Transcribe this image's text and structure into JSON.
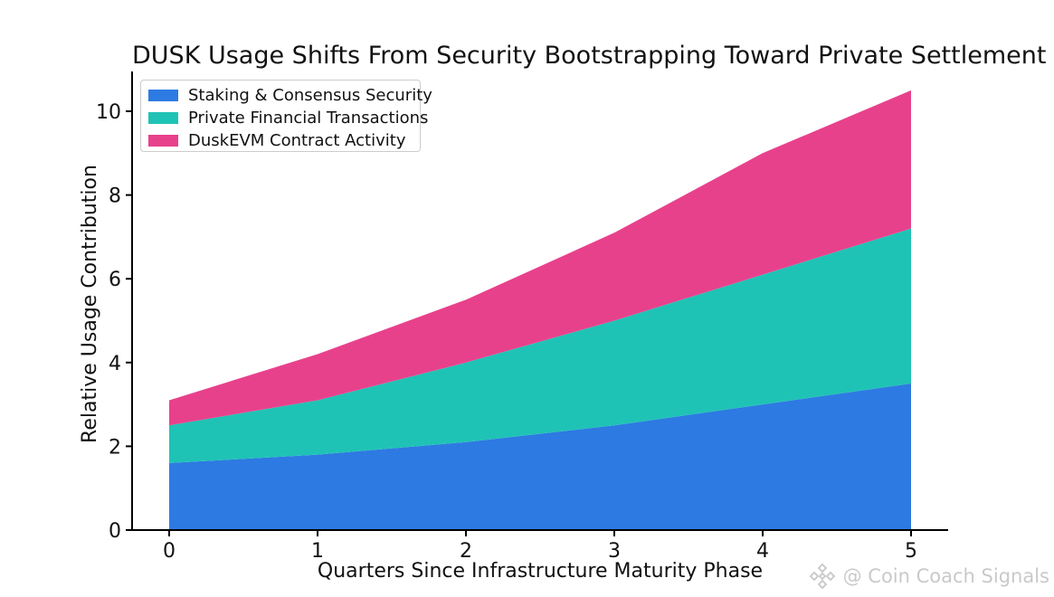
{
  "chart_data": {
    "type": "area",
    "stacked": true,
    "title": "DUSK Usage Shifts From Security Bootstrapping Toward Private Settlement",
    "xlabel": "Quarters Since Infrastructure Maturity Phase",
    "ylabel": "Relative Usage Contribution",
    "x": [
      0,
      1,
      2,
      3,
      4,
      5
    ],
    "xticks": [
      0,
      1,
      2,
      3,
      4,
      5
    ],
    "yticks": [
      0,
      2,
      4,
      6,
      8,
      10
    ],
    "xlim": [
      -0.25,
      5.25
    ],
    "ylim": [
      0,
      10.95
    ],
    "grid": false,
    "legend_position": "upper left",
    "axis_color": "#000000",
    "tick_label_color": "#111111",
    "series": [
      {
        "name": "Staking & Consensus Security",
        "color": "#2d7ae2",
        "values": [
          1.6,
          1.8,
          2.1,
          2.5,
          3.0,
          3.5
        ]
      },
      {
        "name": "Private Financial Transactions",
        "color": "#1fc3b5",
        "values": [
          0.9,
          1.3,
          1.9,
          2.5,
          3.1,
          3.7
        ]
      },
      {
        "name": "DuskEVM Contract Activity",
        "color": "#e8418c",
        "values": [
          0.6,
          1.1,
          1.5,
          2.1,
          2.9,
          3.3
        ]
      }
    ],
    "stacked_totals": [
      3.1,
      4.2,
      5.5,
      7.1,
      9.0,
      10.5
    ]
  },
  "watermark": {
    "icon": "diamond-logo-icon",
    "text": "@ Coin Coach Signals",
    "color": "#c9c9c9"
  }
}
